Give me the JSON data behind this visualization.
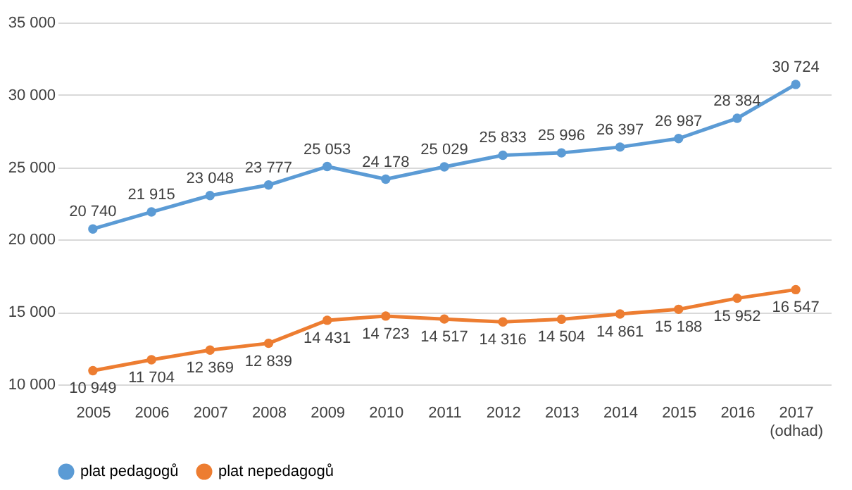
{
  "chart_data": {
    "type": "line",
    "categories": [
      "2005",
      "2006",
      "2007",
      "2008",
      "2009",
      "2010",
      "2011",
      "2012",
      "2013",
      "2014",
      "2015",
      "2016",
      "2017\n(odhad)"
    ],
    "series": [
      {
        "name": "plat pedagogů",
        "color": "#5b9bd5",
        "values": [
          20740,
          21915,
          23048,
          23777,
          25053,
          24178,
          25029,
          25833,
          25996,
          26397,
          26987,
          28384,
          30724
        ],
        "value_labels": [
          "20 740",
          "21 915",
          "23 048",
          "23 777",
          "25 053",
          "24 178",
          "25 029",
          "25 833",
          "25 996",
          "26 397",
          "26 987",
          "28 384",
          "30 724"
        ]
      },
      {
        "name": "plat nepedagogů",
        "color": "#ed7d31",
        "values": [
          10949,
          11704,
          12369,
          12839,
          14431,
          14723,
          14517,
          14316,
          14504,
          14861,
          15188,
          15952,
          16547
        ],
        "value_labels": [
          "10 949",
          "11 704",
          "12 369",
          "12 839",
          "14 431",
          "14 723",
          "14 517",
          "14 316",
          "14 504",
          "14 861",
          "15 188",
          "15 952",
          "16 547"
        ]
      }
    ],
    "ylim": [
      10000,
      35000
    ],
    "yticks": [
      {
        "value": 10000,
        "label": "10 000"
      },
      {
        "value": 15000,
        "label": "15 000"
      },
      {
        "value": 20000,
        "label": "20 000"
      },
      {
        "value": 25000,
        "label": "25 000"
      },
      {
        "value": 30000,
        "label": "30 000"
      },
      {
        "value": 35000,
        "label": "35 000"
      }
    ],
    "grid": "y",
    "legend": "bottom",
    "marker": "circle",
    "line_style": "solid"
  }
}
